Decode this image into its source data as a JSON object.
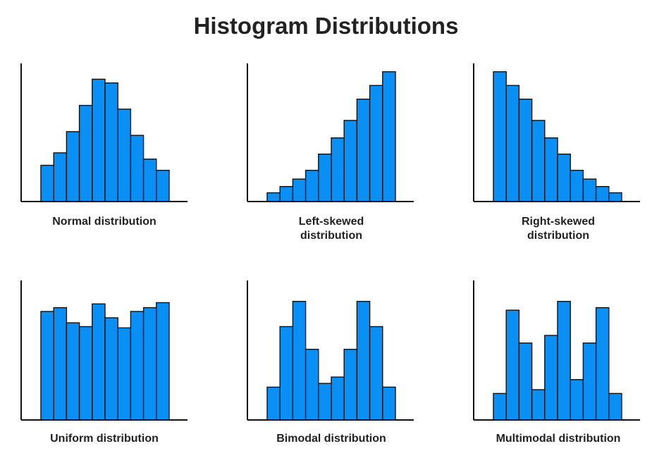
{
  "page": {
    "title": "Histogram Distributions"
  },
  "colors": {
    "bar_fill": "#0a8ff5",
    "bar_stroke": "#111111",
    "axis": "#111111"
  },
  "chart_data": [
    {
      "type": "bar",
      "caption": "Normal distribution",
      "ylim": [
        0,
        100
      ],
      "values": [
        29,
        39,
        56,
        77,
        98,
        95,
        74,
        53,
        34,
        25
      ]
    },
    {
      "type": "bar",
      "caption": "Left-skewed distribution",
      "ylim": [
        0,
        100
      ],
      "values": [
        7,
        12,
        18,
        25,
        38,
        51,
        65,
        82,
        93,
        104
      ]
    },
    {
      "type": "bar",
      "caption": "Right-skewed distribution",
      "ylim": [
        0,
        100
      ],
      "values": [
        104,
        93,
        82,
        65,
        51,
        38,
        25,
        18,
        12,
        7
      ]
    },
    {
      "type": "bar",
      "caption": "Uniform distribution",
      "ylim": [
        0,
        100
      ],
      "values": [
        86,
        89,
        77,
        74,
        92,
        81,
        73,
        86,
        89,
        93
      ]
    },
    {
      "type": "bar",
      "caption": "Bimodal distribution",
      "ylim": [
        0,
        100
      ],
      "values": [
        26,
        74,
        94,
        56,
        29,
        34,
        56,
        94,
        74,
        26
      ]
    },
    {
      "type": "bar",
      "caption": "Multimodal distribution",
      "ylim": [
        0,
        100
      ],
      "values": [
        21,
        87,
        61,
        24,
        67,
        94,
        32,
        61,
        89,
        21
      ]
    }
  ]
}
